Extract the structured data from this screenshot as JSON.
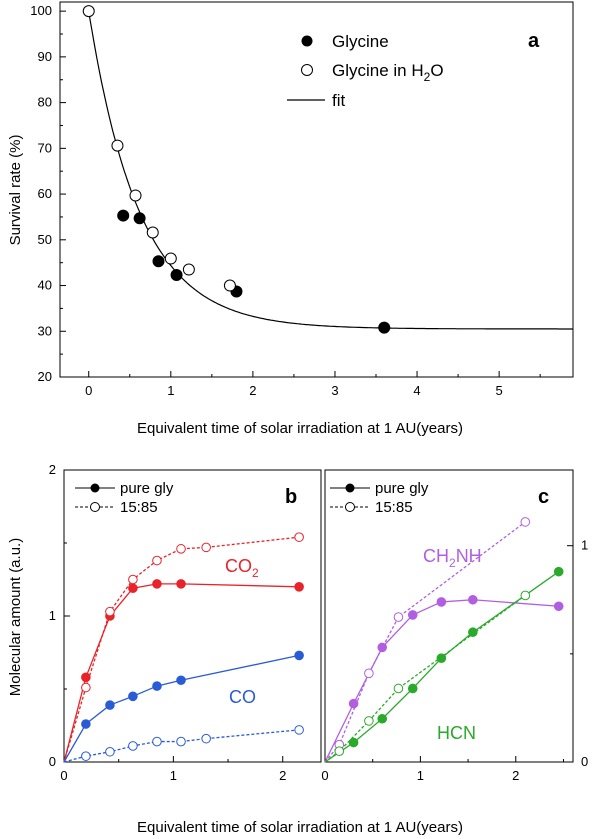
{
  "chart_data": [
    {
      "panel": "a",
      "type": "scatter",
      "xlabel": "Equivalent time of solar irradiation at 1 AU(years)",
      "ylabel": "Survival rate (%)",
      "xlim": [
        -0.35,
        5.9
      ],
      "ylim": [
        20,
        102
      ],
      "xticks": [
        "0",
        "1",
        "2",
        "3",
        "4",
        "5"
      ],
      "yticks": [
        "20",
        "30",
        "40",
        "50",
        "60",
        "70",
        "80",
        "90",
        "100"
      ],
      "legend": {
        "glycine": "Glycine",
        "glycine_h2o": "Glycine in H",
        "glycine_h2o_sub": "2",
        "glycine_h2o_tail": "O",
        "fit": "fit"
      },
      "series": [
        {
          "name": "Glycine",
          "marker": "filled",
          "x": [
            0.42,
            0.62,
            0.85,
            1.07,
            1.8,
            3.6
          ],
          "y": [
            55.3,
            54.7,
            45.3,
            42.3,
            38.7,
            30.8
          ]
        },
        {
          "name": "Glycine in H2O",
          "marker": "open",
          "x": [
            0.0,
            0.35,
            0.57,
            0.78,
            1.0,
            1.22,
            1.72
          ],
          "y": [
            100,
            70.6,
            59.7,
            51.6,
            45.9,
            43.5,
            40.0
          ]
        },
        {
          "name": "fit",
          "type": "exponential",
          "y0": 30.5,
          "amplitude": 69.5,
          "tau": 0.62
        }
      ]
    },
    {
      "panel": "b",
      "type": "line",
      "ylabel": "Molecular amount (a.u.)",
      "xlim": [
        0,
        2.35
      ],
      "ylim": [
        0,
        2
      ],
      "xticks": [
        "0",
        "1",
        "2"
      ],
      "yticks": [
        "0",
        "1",
        "2"
      ],
      "legend": {
        "solid": "pure gly",
        "dashed": "15:85"
      },
      "series": [
        {
          "name": "CO2 pure gly",
          "color": "#e8232a",
          "style": "solid",
          "marker": "filled",
          "x": [
            0.2,
            0.42,
            0.63,
            0.85,
            1.07,
            2.15
          ],
          "y": [
            0.58,
            1.0,
            1.19,
            1.22,
            1.22,
            1.2
          ]
        },
        {
          "name": "CO2 15:85",
          "color": "#e8232a",
          "style": "dashed",
          "marker": "open",
          "x": [
            0.2,
            0.42,
            0.63,
            0.85,
            1.07,
            1.3,
            2.15
          ],
          "y": [
            0.51,
            1.03,
            1.25,
            1.38,
            1.46,
            1.47,
            1.54
          ]
        },
        {
          "name": "CO pure gly",
          "color": "#2a5bd7",
          "style": "solid",
          "marker": "filled",
          "x": [
            0.2,
            0.42,
            0.63,
            0.85,
            1.07,
            2.15
          ],
          "y": [
            0.26,
            0.39,
            0.45,
            0.52,
            0.56,
            0.73
          ]
        },
        {
          "name": "CO 15:85",
          "color": "#2a5bd7",
          "style": "dashed",
          "marker": "open",
          "x": [
            0.2,
            0.42,
            0.63,
            0.85,
            1.07,
            1.3,
            2.15
          ],
          "y": [
            0.04,
            0.07,
            0.11,
            0.14,
            0.14,
            0.16,
            0.22
          ]
        }
      ],
      "annotations": {
        "co2": "CO",
        "co2_sub": "2",
        "co": "CO"
      }
    },
    {
      "panel": "c",
      "type": "line",
      "xlim": [
        0,
        2.6
      ],
      "ylim": [
        0,
        1.35
      ],
      "xticks": [
        "0",
        "1",
        "2"
      ],
      "yticks": [
        "0",
        "1"
      ],
      "legend": {
        "solid": "pure gly",
        "dashed": "15:85"
      },
      "series": [
        {
          "name": "CH2NH pure gly",
          "color": "#b15fe0",
          "style": "solid",
          "marker": "filled",
          "x": [
            0.3,
            0.6,
            0.92,
            1.22,
            1.55,
            2.45
          ],
          "y": [
            0.27,
            0.53,
            0.68,
            0.74,
            0.75,
            0.72
          ]
        },
        {
          "name": "CH2NH 15:85",
          "color": "#b15fe0",
          "style": "dashed",
          "marker": "open",
          "x": [
            0.15,
            0.46,
            0.77,
            2.1
          ],
          "y": [
            0.08,
            0.41,
            0.67,
            1.11
          ]
        },
        {
          "name": "HCN pure gly",
          "color": "#2aaa2a",
          "style": "solid",
          "marker": "filled",
          "x": [
            0.3,
            0.6,
            0.92,
            1.22,
            1.55,
            2.45
          ],
          "y": [
            0.09,
            0.2,
            0.34,
            0.48,
            0.6,
            0.88
          ]
        },
        {
          "name": "HCN 15:85",
          "color": "#2aaa2a",
          "style": "dashed",
          "marker": "open",
          "x": [
            0.15,
            0.46,
            0.77,
            2.1
          ],
          "y": [
            0.05,
            0.19,
            0.34,
            0.77
          ]
        }
      ],
      "annotations": {
        "ch2nh_a": "CH",
        "ch2nh_sub": "2",
        "ch2nh_b": "NH",
        "hcn": "HCN"
      }
    }
  ],
  "labels": {
    "panel_a": "a",
    "panel_b": "b",
    "panel_c": "c",
    "bottom_xlabel": "Equivalent time of solar irradiation at 1 AU(years)"
  }
}
